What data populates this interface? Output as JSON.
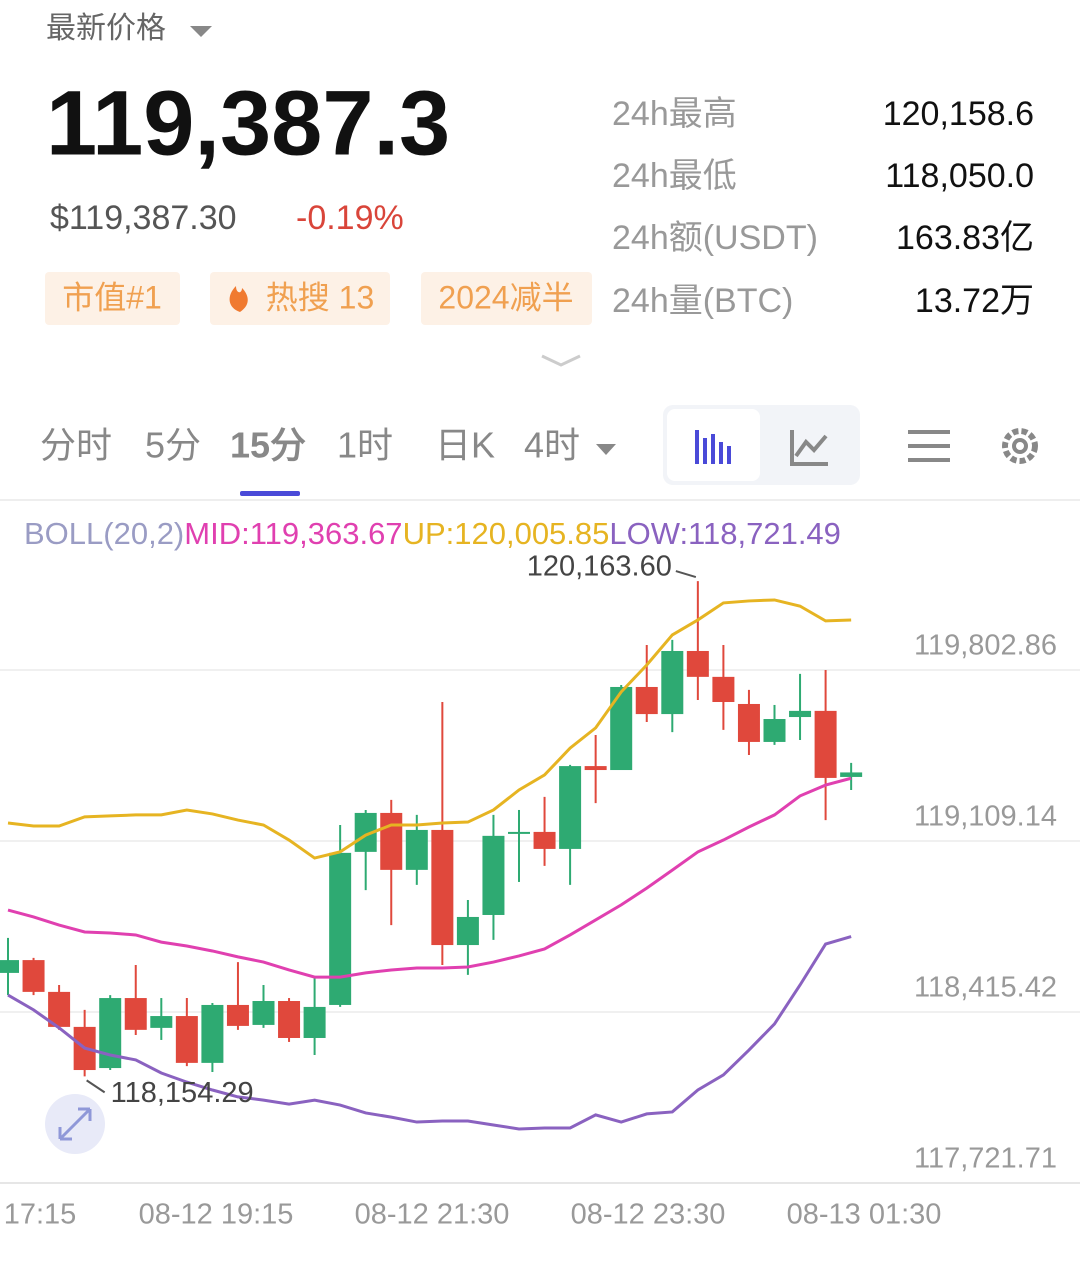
{
  "header": {
    "title": "最新价格",
    "price": "119,387.3",
    "usd_price": "$119,387.30",
    "change": "-0.19%",
    "tags": [
      "市值#1",
      "热搜 13",
      "2024减半"
    ],
    "stats": [
      {
        "label": "24h最高",
        "value": "120,158.6"
      },
      {
        "label": "24h最低",
        "value": "118,050.0"
      },
      {
        "label": "24h额(USDT)",
        "value": "163.83亿"
      },
      {
        "label": "24h量(BTC)",
        "value": "13.72万"
      }
    ]
  },
  "tabs": {
    "items": [
      "分时",
      "5分",
      "15分",
      "1时",
      "日K",
      "4时"
    ],
    "active": 2
  },
  "chart_data": {
    "type": "candlestick",
    "legend_labels": [
      {
        "text": "BOLL(20,2)",
        "color": "#9a9cc4"
      },
      {
        "text": "MID:119,363.67",
        "color": "#e040b0"
      },
      {
        "text": "UP:120,005.85",
        "color": "#e6b422"
      },
      {
        "text": "LOW:118,721.49",
        "color": "#8a62c0"
      }
    ],
    "up_color": "#2eaa72",
    "down_color": "#e0483c",
    "open": [
      118574,
      118626,
      118497,
      118355,
      118188,
      118472,
      118351,
      118399,
      118209,
      118444,
      118363,
      118460,
      118310,
      118444,
      119065,
      119223,
      118992,
      119154,
      118687,
      118809,
      119138,
      119146,
      119077,
      119413,
      119397,
      119734,
      119624,
      119880,
      119775,
      119665,
      119511,
      119612,
      119637,
      119369
    ],
    "high": [
      118716,
      118635,
      118525,
      118424,
      118484,
      118606,
      118472,
      118472,
      118452,
      118618,
      118525,
      118472,
      118553,
      119174,
      119235,
      119276,
      119215,
      119673,
      118870,
      119215,
      119235,
      119288,
      119418,
      119539,
      119742,
      119904,
      119925,
      120163.6,
      119904,
      119722,
      119661,
      119787,
      119803,
      119426
    ],
    "low": [
      118484,
      118484,
      118343,
      118154.29,
      118180,
      118322,
      118302,
      118196,
      118172,
      118343,
      118351,
      118294,
      118241,
      118436,
      118910,
      118768,
      118931,
      118606,
      118566,
      118708,
      118943,
      119008,
      118931,
      119263,
      119397,
      119592,
      119551,
      119681,
      119560,
      119458,
      119499,
      119519,
      119194,
      119316
    ],
    "close": [
      118626,
      118497,
      118355,
      118180,
      118472,
      118343,
      118399,
      118209,
      118444,
      118359,
      118460,
      118310,
      118436,
      119061,
      119223,
      118992,
      119154,
      118687,
      118801,
      119130,
      119146,
      119077,
      119413,
      119397,
      119734,
      119624,
      119880,
      119775,
      119673,
      119511,
      119604,
      119637,
      119365,
      119387.3
    ],
    "series": [
      {
        "color": "#e6b422",
        "values": [
          119182,
          119170,
          119170,
          119207,
          119211,
          119215,
          119215,
          119235,
          119219,
          119194,
          119174,
          119113,
          119040,
          119065,
          119133,
          119174,
          119174,
          119182,
          119186,
          119235,
          119316,
          119377,
          119486,
          119568,
          119714,
          119823,
          119945,
          120006,
          120075,
          120083,
          120087,
          120062,
          120002,
          120005.85
        ]
      },
      {
        "color": "#e040b0",
        "values": [
          118829,
          118801,
          118768,
          118740,
          118736,
          118728,
          118699,
          118683,
          118663,
          118639,
          118618,
          118586,
          118557,
          118557,
          118574,
          118586,
          118594,
          118594,
          118598,
          118618,
          118643,
          118671,
          118728,
          118789,
          118850,
          118918,
          118991,
          119065,
          119113,
          119166,
          119215,
          119292,
          119336,
          119363.67
        ]
      },
      {
        "color": "#8a62c0",
        "values": [
          118484,
          118424,
          118351,
          118269,
          118241,
          118221,
          118168,
          118131,
          118099,
          118071,
          118058,
          118042,
          118058,
          118038,
          118006,
          117989,
          117969,
          117973,
          117973,
          117957,
          117941,
          117945,
          117945,
          117998,
          117969,
          118002,
          118010,
          118099,
          118160,
          118261,
          118367,
          118525,
          118691,
          118721.49
        ]
      }
    ],
    "annotations": [
      {
        "value": 120163.6,
        "label": "120,163.60"
      },
      {
        "value": 118154.29,
        "label": "118,154.29"
      }
    ],
    "x_labels": [
      "17:15",
      "08-12 19:15",
      "08-12 21:30",
      "08-12 23:30",
      "08-13 01:30"
    ],
    "ylim": [
      117721.71,
      120472.2
    ],
    "yticks": [
      {
        "value": 117721.71,
        "label": "117,721.71"
      },
      {
        "value": 118415.42,
        "label": "118,415.42"
      },
      {
        "value": 119109.14,
        "label": "119,109.14"
      },
      {
        "value": 119802.86,
        "label": "119,802.86"
      }
    ],
    "grid": true
  }
}
